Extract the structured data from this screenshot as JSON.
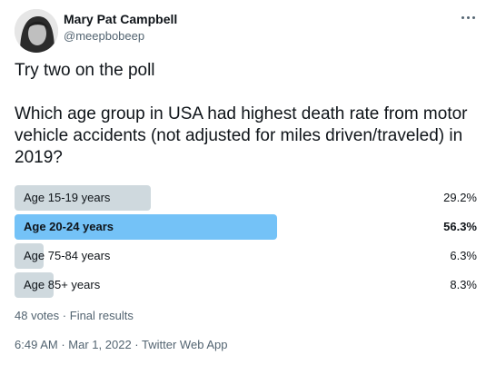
{
  "author": {
    "name": "Mary Pat Campbell",
    "handle": "@meepbobeep"
  },
  "tweet": {
    "text": "Try two on the poll\n\nWhich age group in USA had highest death rate from motor vehicle accidents (not adjusted for miles driven/traveled) in 2019?"
  },
  "poll": {
    "options": [
      {
        "label": "Age 15-19 years",
        "percent_text": "29.2%",
        "percent": 29.2,
        "winner": false
      },
      {
        "label": "Age 20-24 years",
        "percent_text": "56.3%",
        "percent": 56.3,
        "winner": true
      },
      {
        "label": "Age 75-84 years",
        "percent_text": "6.3%",
        "percent": 6.3,
        "winner": false
      },
      {
        "label": "Age 85+ years",
        "percent_text": "8.3%",
        "percent": 8.3,
        "winner": false
      }
    ],
    "votes": "48 votes",
    "separator": "·",
    "status": "Final results"
  },
  "meta": {
    "time": "6:49 AM",
    "date": "Mar 1, 2022",
    "separator": "·",
    "source": "Twitter Web App"
  },
  "icons": {
    "more": "more-horizontal-icon",
    "avatar": "avatar-photo"
  },
  "colors": {
    "winner_bar": "#74c2f7",
    "bar": "#cfd9de",
    "muted_text": "#536471"
  }
}
